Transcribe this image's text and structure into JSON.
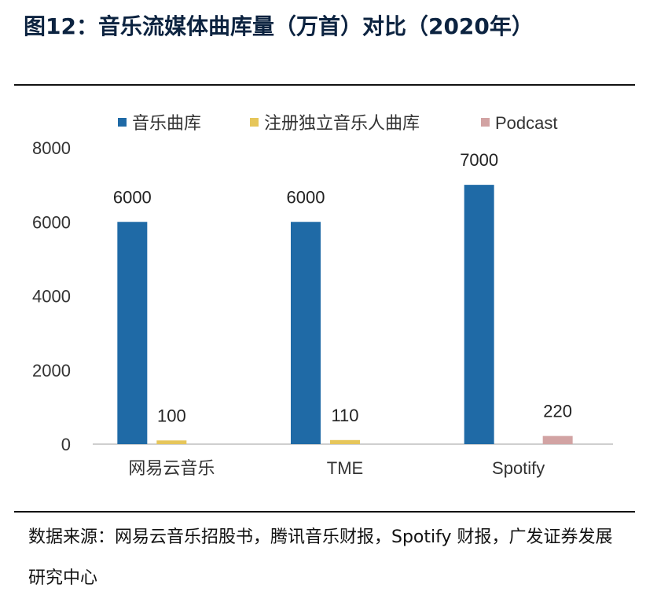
{
  "title": "图12：音乐流媒体曲库量（万首）对比（2020年）",
  "source": "数据来源：网易云音乐招股书，腾讯音乐财报，Spotify 财报，广发证券发展研究中心",
  "chart_data": {
    "type": "bar",
    "categories": [
      "网易云音乐",
      "TME",
      "Spotify"
    ],
    "series": [
      {
        "name": "音乐曲库",
        "color": "#1f6aa6",
        "values": [
          6000,
          6000,
          7000
        ]
      },
      {
        "name": "注册独立音乐人曲库",
        "color": "#e6c65a",
        "values": [
          100,
          110,
          null
        ]
      },
      {
        "name": "Podcast",
        "color": "#d2a3a3",
        "values": [
          null,
          null,
          220
        ]
      }
    ],
    "yticks": [
      0,
      2000,
      4000,
      6000,
      8000
    ],
    "ylim": [
      0,
      8000
    ],
    "legend": "top",
    "grid": false
  }
}
